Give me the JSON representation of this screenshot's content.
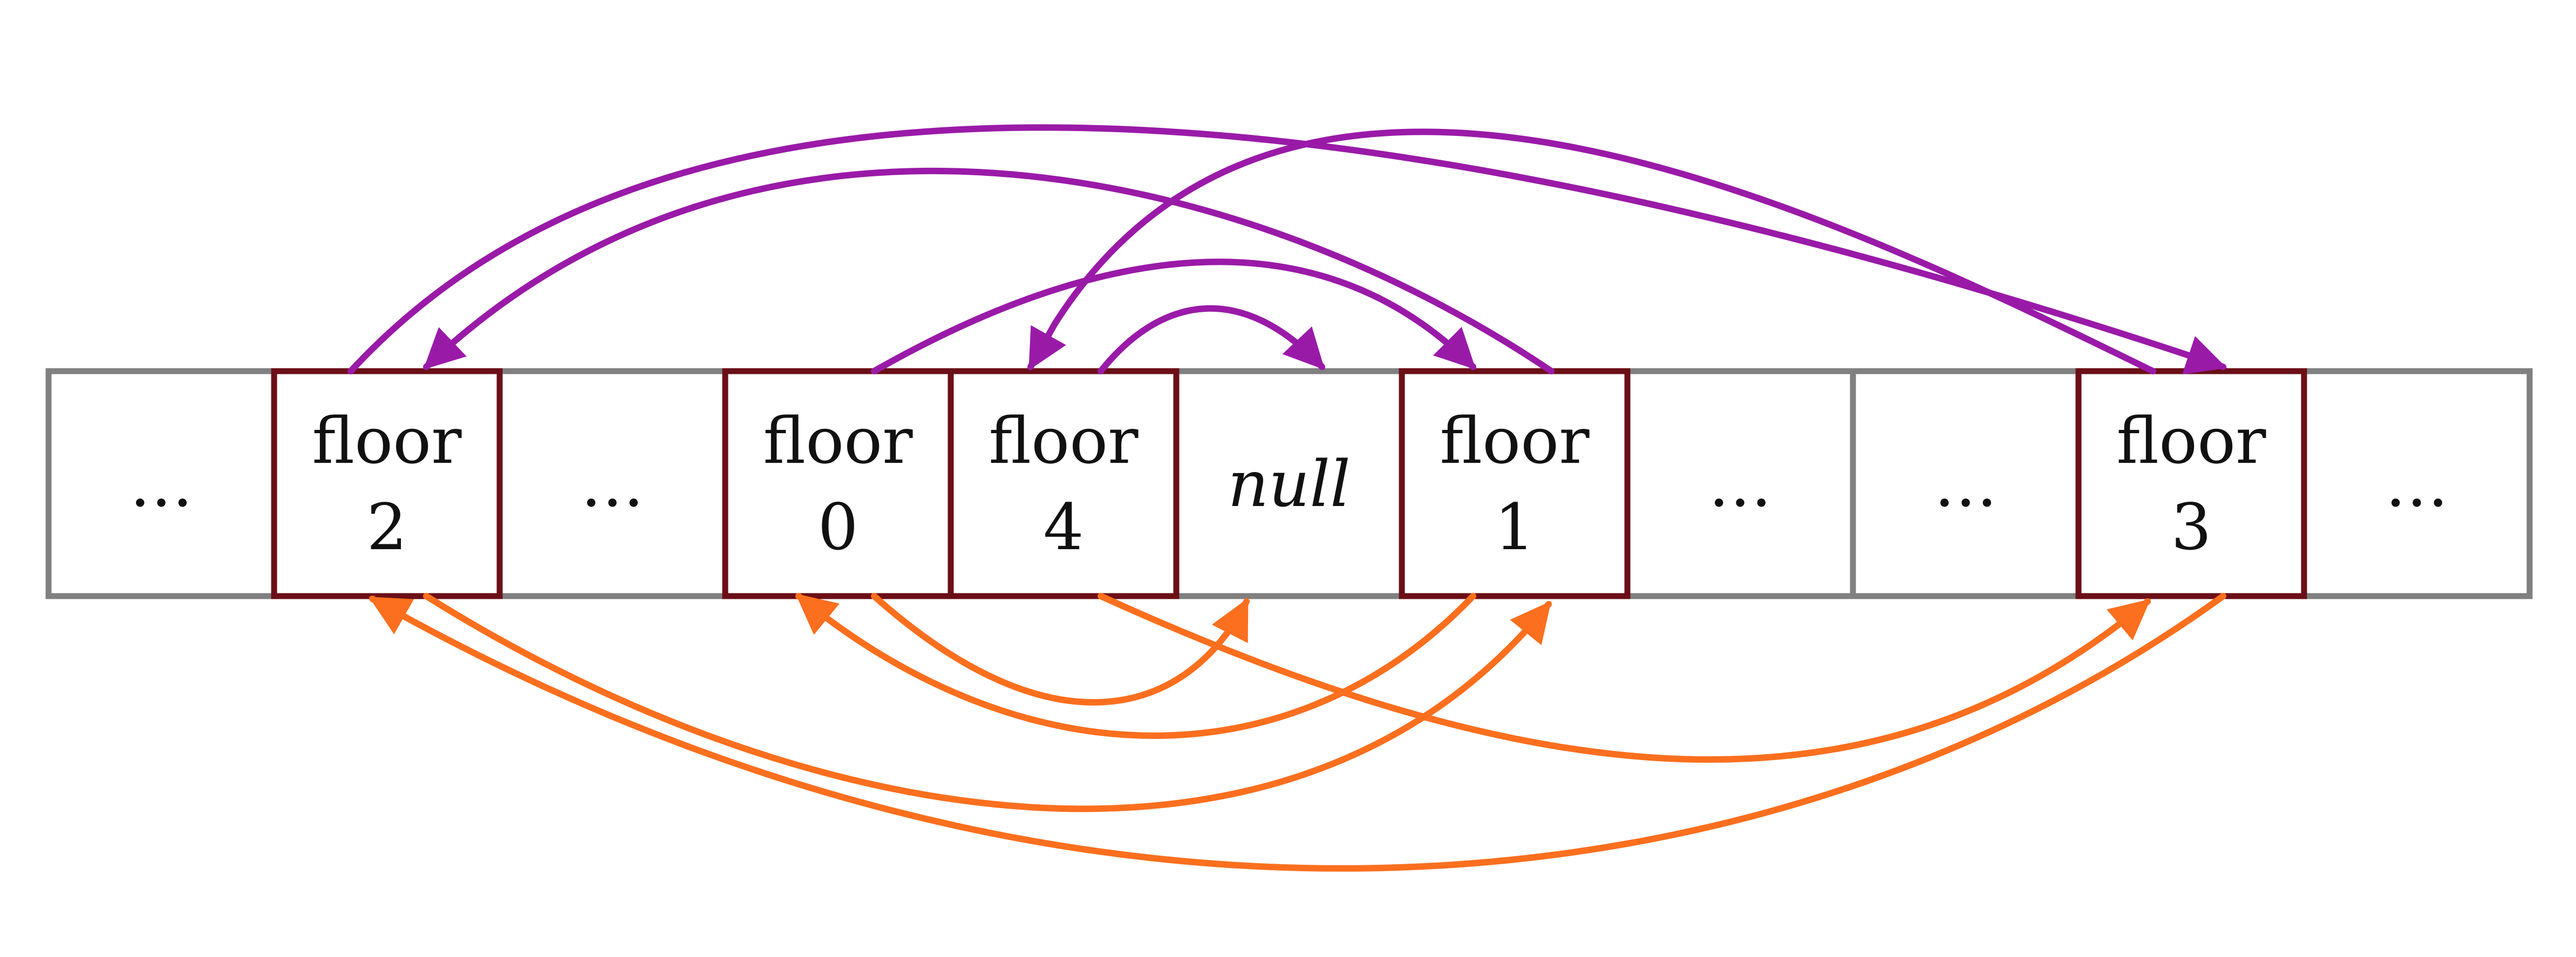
{
  "colors": {
    "cell_border": "#808080",
    "floor_border": "#6b0f17",
    "forward_link": "#9a1aa8",
    "backward_link": "#fb6f1e"
  },
  "cells": [
    {
      "kind": "ellipsis",
      "text": "…"
    },
    {
      "kind": "floor",
      "word": "floor",
      "number": "2"
    },
    {
      "kind": "ellipsis",
      "text": "…"
    },
    {
      "kind": "floor",
      "word": "floor",
      "number": "0"
    },
    {
      "kind": "floor",
      "word": "floor",
      "number": "4"
    },
    {
      "kind": "null",
      "text": "null"
    },
    {
      "kind": "floor",
      "word": "floor",
      "number": "1"
    },
    {
      "kind": "ellipsis",
      "text": "…"
    },
    {
      "kind": "ellipsis",
      "text": "…"
    },
    {
      "kind": "floor",
      "word": "floor",
      "number": "3"
    },
    {
      "kind": "ellipsis",
      "text": "…"
    }
  ],
  "forward_links": [
    {
      "from": "2",
      "to": "3"
    },
    {
      "from": "3",
      "to": "4"
    },
    {
      "from": "4",
      "to": "null"
    },
    {
      "from": "1",
      "to": "2"
    },
    {
      "from": "0",
      "to": "1"
    }
  ],
  "backward_links": [
    {
      "from": "2",
      "to": "1"
    },
    {
      "from": "1",
      "to": "0"
    },
    {
      "from": "0",
      "to": "null"
    },
    {
      "from": "4",
      "to": "3"
    },
    {
      "from": "3",
      "to": "2"
    }
  ]
}
